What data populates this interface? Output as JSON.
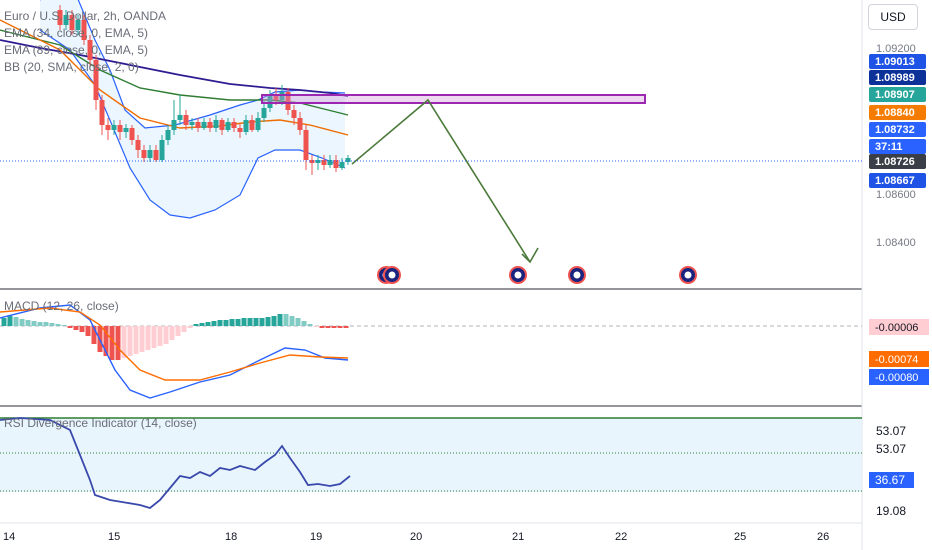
{
  "header": {
    "symbol_line": "Euro / U.S. Dollar, 2h, OANDA",
    "ema34": "EMA (34, close, 0, EMA, 5)",
    "ema89": "EMA (89, close, 0, EMA, 5)",
    "bb": "BB (20, SMA, close, 2, 0)",
    "currency_button": "USD"
  },
  "macd_pane": {
    "title": "MACD (12, 26, close)"
  },
  "rsi_pane": {
    "title": "RSI Divergence Indicator (14, close)"
  },
  "price_scale": {
    "ticks": [
      "1.09200",
      "1.08600",
      "1.08400"
    ],
    "labels": [
      {
        "text": "1.09013",
        "bg": "#1e53e5",
        "fg": "#ffffff"
      },
      {
        "text": "1.08989",
        "bg": "#0c3299",
        "fg": "#ffffff"
      },
      {
        "text": "1.08907",
        "bg": "#26a69a",
        "fg": "#ffffff"
      },
      {
        "text": "1.08840",
        "bg": "#f57c00",
        "fg": "#ffffff"
      },
      {
        "text": "1.08732",
        "bg": "#2962ff",
        "fg": "#ffffff"
      },
      {
        "text": "37:11",
        "bg": "#2962ff",
        "fg": "#ffffff"
      },
      {
        "text": "1.08726",
        "bg": "#3a3e47",
        "fg": "#ffffff"
      },
      {
        "text": "1.08667",
        "bg": "#1e53e5",
        "fg": "#ffffff"
      }
    ]
  },
  "macd_scale": {
    "labels": [
      {
        "text": "-0.00006",
        "bg": "#ffcdd2",
        "fg": "#131722"
      },
      {
        "text": "-0.00074",
        "bg": "#ff6d00",
        "fg": "#ffffff"
      },
      {
        "text": "-0.00080",
        "bg": "#2962ff",
        "fg": "#ffffff"
      }
    ]
  },
  "rsi_scale": {
    "ticks": [
      "53.07",
      "53.07",
      "19.08"
    ],
    "labels": [
      {
        "text": "36.67",
        "bg": "#2962ff",
        "fg": "#ffffff"
      }
    ]
  },
  "time_axis": {
    "labels": [
      "14",
      "15",
      "18",
      "19",
      "20",
      "21",
      "22",
      "25",
      "26"
    ]
  },
  "colors": {
    "up": "#26a69a",
    "down": "#ef5350",
    "bb": "#2962ff",
    "bb_fill": "#e3f2fd",
    "ema34": "#ef6c00",
    "ema89": "#2e7d32",
    "sma": "#311b92",
    "box": "#9c27b0",
    "projection": "#4b7a3a",
    "macd_line": "#2962ff",
    "signal_line": "#ff6d00",
    "rsi_line": "#3949ab"
  },
  "chart_data": [
    {
      "type": "candlestick",
      "title": "Euro / U.S. Dollar, 2h, OANDA",
      "ylim": [
        1.083,
        1.093
      ],
      "overlays": [
        "EMA 34",
        "EMA 89",
        "Bollinger Bands 20",
        "Resistance zone",
        "Projected path"
      ],
      "last_price": 1.08726,
      "zone": [
        1.0887,
        1.089
      ]
    },
    {
      "type": "histogram+line",
      "title": "MACD (12, 26, close)",
      "series": [
        {
          "name": "MACD",
          "last": -0.0008
        },
        {
          "name": "Signal",
          "last": -0.00074
        },
        {
          "name": "Histogram",
          "last": -6e-05
        }
      ]
    },
    {
      "type": "line",
      "title": "RSI Divergence Indicator (14, close)",
      "levels": [
        53.07,
        19.08
      ],
      "last": 36.67
    }
  ]
}
